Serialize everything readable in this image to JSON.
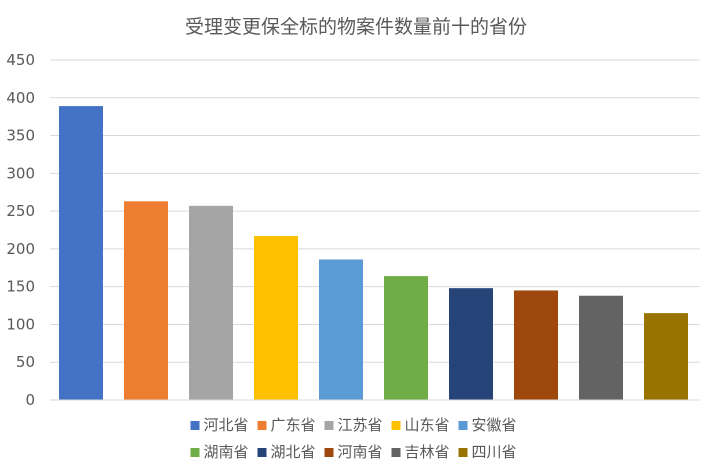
{
  "chart_data": {
    "type": "bar",
    "title": "受理变更保全标的物案件数量前十的省份",
    "xlabel": "",
    "ylabel": "",
    "ylim": [
      0,
      450
    ],
    "yticks": [
      0,
      50,
      100,
      150,
      200,
      250,
      300,
      350,
      400,
      450
    ],
    "grid": true,
    "legend_position": "bottom",
    "categories": [
      "河北省",
      "广东省",
      "江苏省",
      "山东省",
      "安徽省",
      "湖南省",
      "湖北省",
      "河南省",
      "吉林省",
      "四川省"
    ],
    "values": [
      389,
      263,
      257,
      217,
      186,
      164,
      148,
      145,
      138,
      115
    ],
    "colors": [
      "#4472C4",
      "#ED7D31",
      "#A5A5A5",
      "#FFC000",
      "#5B9BD5",
      "#70AD47",
      "#264478",
      "#9E480E",
      "#636363",
      "#997300"
    ]
  }
}
